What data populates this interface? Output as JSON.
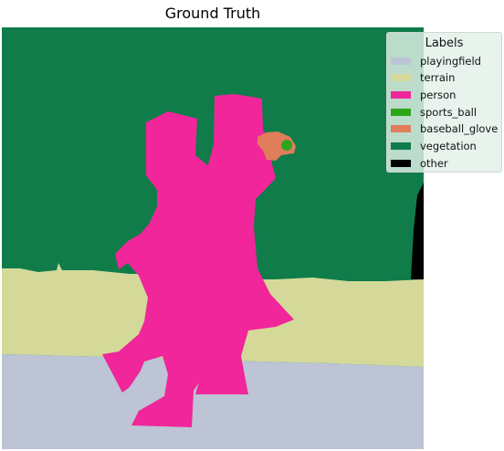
{
  "figure": {
    "title": "Ground Truth"
  },
  "legend": {
    "title": "Labels",
    "placement": "top-right",
    "items": [
      {
        "label": "playingfield",
        "color": "#bcc4d6"
      },
      {
        "label": "terrain",
        "color": "#d4d99a"
      },
      {
        "label": "person",
        "color": "#f0269a"
      },
      {
        "label": "sports_ball",
        "color": "#2ca619"
      },
      {
        "label": "baseball_glove",
        "color": "#e07d5a"
      },
      {
        "label": "vegetation",
        "color": "#0f7c4a"
      },
      {
        "label": "other",
        "color": "#000000"
      }
    ]
  }
}
